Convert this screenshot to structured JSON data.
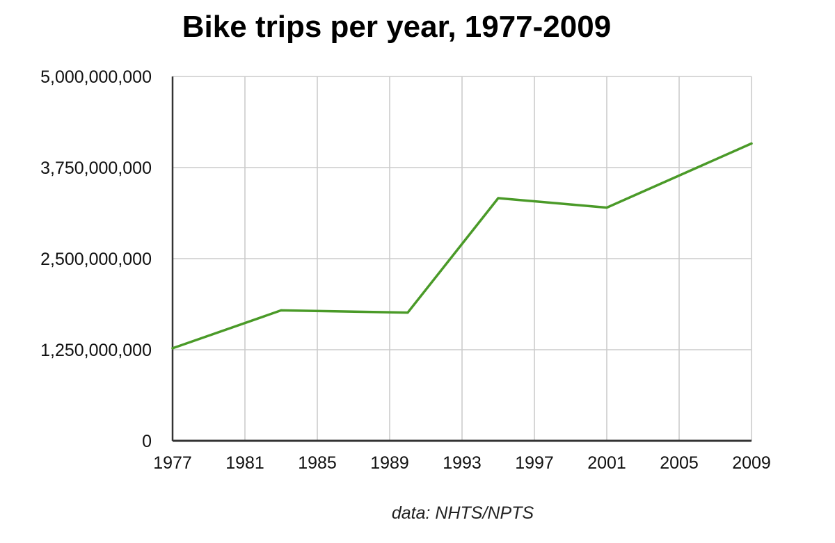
{
  "chart_data": {
    "type": "line",
    "title": "Bike trips per year, 1977-2009",
    "xlabel": "",
    "ylabel": "",
    "x_ticks": [
      "1977",
      "1981",
      "1985",
      "1989",
      "1993",
      "1997",
      "2001",
      "2005",
      "2009"
    ],
    "x_range": [
      1977,
      2009
    ],
    "y_ticks": [
      {
        "value": 0,
        "label": "0"
      },
      {
        "value": 1250000000,
        "label": "1,250,000,000"
      },
      {
        "value": 2500000000,
        "label": "2,500,000,000"
      },
      {
        "value": 3750000000,
        "label": "3,750,000,000"
      },
      {
        "value": 5000000000,
        "label": "5,000,000,000"
      }
    ],
    "ylim": [
      0,
      5000000000
    ],
    "grid": true,
    "series": [
      {
        "name": "Bike trips",
        "color": "#4a9a28",
        "x": [
          1977,
          1983,
          1990,
          1995,
          2001,
          2009
        ],
        "values": [
          1270000000,
          1790000000,
          1760000000,
          3330000000,
          3200000000,
          4080000000
        ]
      }
    ]
  },
  "footer": {
    "source": "data: NHTS/NPTS"
  },
  "colors": {
    "grid": "#cccccc",
    "axis": "#333333",
    "line": "#4a9a28"
  }
}
